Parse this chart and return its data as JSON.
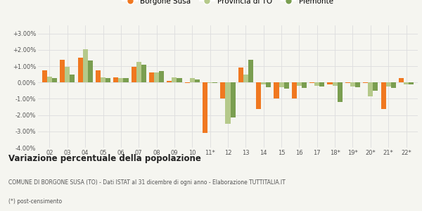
{
  "categories": [
    "02",
    "03",
    "04",
    "05",
    "06",
    "07",
    "08",
    "09",
    "10",
    "11*",
    "12",
    "13",
    "14",
    "15",
    "16",
    "17",
    "18*",
    "19*",
    "20*",
    "21*",
    "22*"
  ],
  "borgone_susa": [
    0.75,
    1.4,
    1.5,
    0.75,
    0.3,
    0.95,
    0.6,
    0.1,
    -0.05,
    -3.1,
    -1.0,
    0.9,
    -1.65,
    -1.0,
    -1.0,
    -0.05,
    -0.1,
    -0.05,
    -0.05,
    -1.65,
    0.25
  ],
  "provincia_to": [
    0.35,
    0.95,
    2.05,
    0.3,
    0.25,
    1.25,
    0.6,
    0.3,
    0.25,
    -0.05,
    -2.55,
    0.5,
    -0.1,
    -0.3,
    -0.2,
    -0.2,
    -0.2,
    -0.25,
    -0.85,
    -0.25,
    -0.1
  ],
  "piemonte": [
    0.25,
    0.5,
    1.35,
    0.25,
    0.25,
    1.1,
    0.7,
    0.25,
    0.2,
    -0.05,
    -2.15,
    1.4,
    -0.3,
    -0.4,
    -0.35,
    -0.25,
    -1.2,
    -0.3,
    -0.5,
    -0.35,
    -0.1
  ],
  "color_borgone": "#f07820",
  "color_provincia": "#b5c98a",
  "color_piemonte": "#7a9e50",
  "title_bold": "Variazione percentuale della popolazione",
  "subtitle": "COMUNE DI BORGONE SUSA (TO) - Dati ISTAT al 31 dicembre di ogni anno - Elaborazione TUTTITALIA.IT",
  "footnote": "(*) post-censimento",
  "legend_labels": [
    "Borgone Susa",
    "Provincia di TO",
    "Piemonte"
  ],
  "ylim": [
    -4.0,
    3.5
  ],
  "yticks": [
    -4.0,
    -3.0,
    -2.0,
    -1.0,
    0.0,
    1.0,
    2.0,
    3.0
  ],
  "background_color": "#f5f5f0",
  "grid_color": "#dddddd"
}
